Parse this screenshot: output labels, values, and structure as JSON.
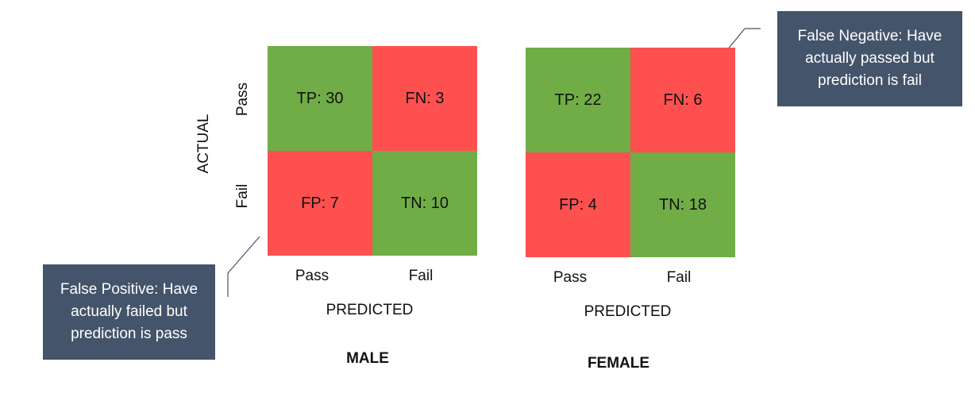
{
  "colors": {
    "correct": "#70AD47",
    "error": "#FF5050",
    "callout_bg": "#44546A"
  },
  "axis_labels": {
    "actual": "ACTUAL",
    "predicted": "PREDICTED",
    "actual_pass": "Pass",
    "actual_fail": "Fail",
    "pred_pass": "Pass",
    "pred_fail": "Fail"
  },
  "matrices": [
    {
      "group": "MALE",
      "tp": "TP: 30",
      "fn": "FN: 3",
      "fp": "FP: 7",
      "tn": "TN: 10"
    },
    {
      "group": "FEMALE",
      "tp": "TP: 22",
      "fn": "FN: 6",
      "fp": "FP: 4",
      "tn": "TN: 18"
    }
  ],
  "callouts": {
    "false_negative": "False Negative: Have actually passed but prediction is fail",
    "false_positive": "False Positive: Have actually failed but prediction is pass"
  }
}
